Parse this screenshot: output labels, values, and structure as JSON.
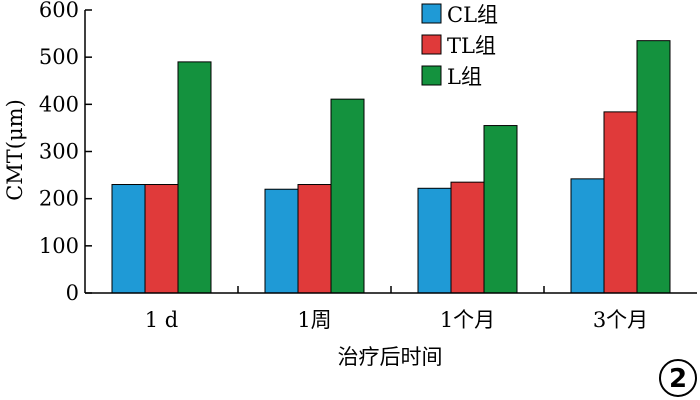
{
  "chart_data": {
    "type": "bar",
    "categories": [
      "1 d",
      "1周",
      "1个月",
      "3个月"
    ],
    "series": [
      {
        "name": "CL组",
        "color": "#1f9ad6",
        "values": [
          230,
          220,
          222,
          242
        ]
      },
      {
        "name": "TL组",
        "color": "#e03a3a",
        "values": [
          230,
          230,
          235,
          384
        ]
      },
      {
        "name": "L组",
        "color": "#14923e",
        "values": [
          490,
          411,
          355,
          535
        ]
      }
    ],
    "title": "",
    "xlabel": "治疗后时间",
    "ylabel": "CMT(μm)",
    "ylim": [
      0,
      600
    ],
    "yticks": [
      0,
      100,
      200,
      300,
      400,
      500,
      600
    ],
    "grid": false,
    "legend_position": "top-right"
  },
  "badge": "2"
}
